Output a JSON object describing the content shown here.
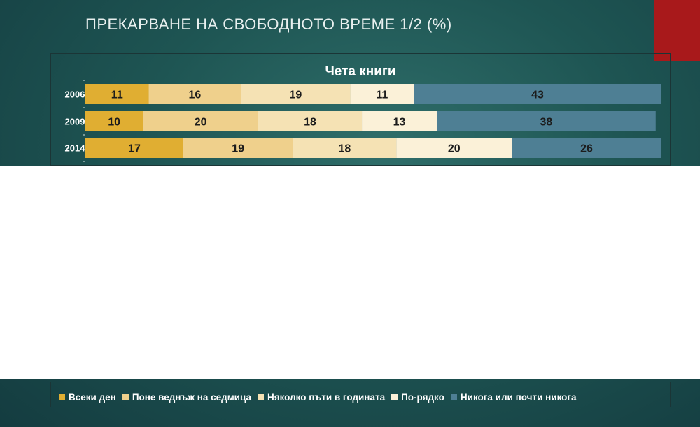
{
  "slide": {
    "title": "ПРЕКАРВАНЕ НА СВОБОДНОТО ВРЕМЕ 1/2 (%)"
  },
  "chart_data": {
    "type": "bar",
    "orientation": "horizontal",
    "stacked": true,
    "title": "Чета книги",
    "categories": [
      "2006",
      "2009",
      "2014"
    ],
    "series": [
      {
        "name": "Всеки ден",
        "color": "#e0ae32",
        "values": [
          11,
          10,
          17
        ]
      },
      {
        "name": "Поне веднъж на седмица",
        "color": "#efd08c",
        "values": [
          16,
          20,
          19
        ]
      },
      {
        "name": "Няколко пъти в годината",
        "color": "#f5e2b4",
        "values": [
          19,
          18,
          18
        ]
      },
      {
        "name": "По-рядко",
        "color": "#fbf1d8",
        "values": [
          11,
          13,
          20
        ]
      },
      {
        "name": "Никога или почти никога",
        "color": "#4e7f94",
        "values": [
          43,
          38,
          26
        ]
      }
    ],
    "xlim": [
      0,
      100
    ],
    "data_labels": true,
    "legend_position": "bottom"
  }
}
